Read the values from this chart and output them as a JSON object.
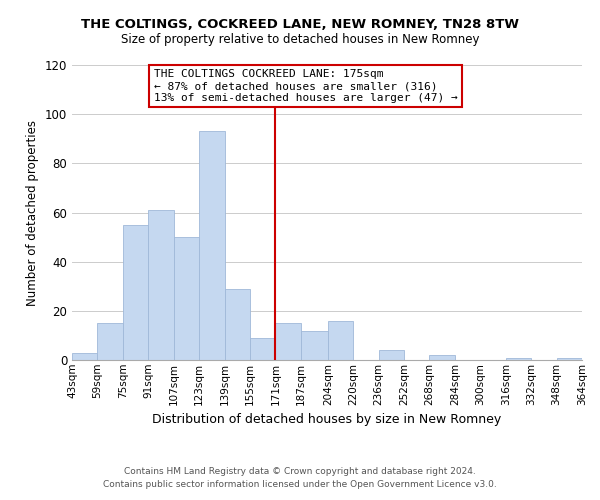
{
  "title_line1": "THE COLTINGS, COCKREED LANE, NEW ROMNEY, TN28 8TW",
  "subtitle": "Size of property relative to detached houses in New Romney",
  "xlabel": "Distribution of detached houses by size in New Romney",
  "ylabel": "Number of detached properties",
  "annotation_line1": "THE COLTINGS COCKREED LANE: 175sqm",
  "annotation_line2": "← 87% of detached houses are smaller (316)",
  "annotation_line3": "13% of semi-detached houses are larger (47) →",
  "bar_color": "#c5d8f0",
  "bar_edge_color": "#a0b8d8",
  "vline_color": "#cc0000",
  "vline_x": 171,
  "bin_edges": [
    43,
    59,
    75,
    91,
    107,
    123,
    139,
    155,
    171,
    187,
    204,
    220,
    236,
    252,
    268,
    284,
    300,
    316,
    332,
    348,
    364
  ],
  "bin_labels": [
    "43sqm",
    "59sqm",
    "75sqm",
    "91sqm",
    "107sqm",
    "123sqm",
    "139sqm",
    "155sqm",
    "171sqm",
    "187sqm",
    "204sqm",
    "220sqm",
    "236sqm",
    "252sqm",
    "268sqm",
    "284sqm",
    "300sqm",
    "316sqm",
    "332sqm",
    "348sqm",
    "364sqm"
  ],
  "counts": [
    3,
    15,
    55,
    61,
    50,
    93,
    29,
    9,
    15,
    12,
    16,
    0,
    4,
    0,
    2,
    0,
    0,
    1,
    0,
    1,
    0
  ],
  "ylim": [
    0,
    120
  ],
  "yticks": [
    0,
    20,
    40,
    60,
    80,
    100,
    120
  ],
  "footnote1": "Contains HM Land Registry data © Crown copyright and database right 2024.",
  "footnote2": "Contains public sector information licensed under the Open Government Licence v3.0.",
  "background_color": "#ffffff",
  "grid_color": "#cccccc"
}
